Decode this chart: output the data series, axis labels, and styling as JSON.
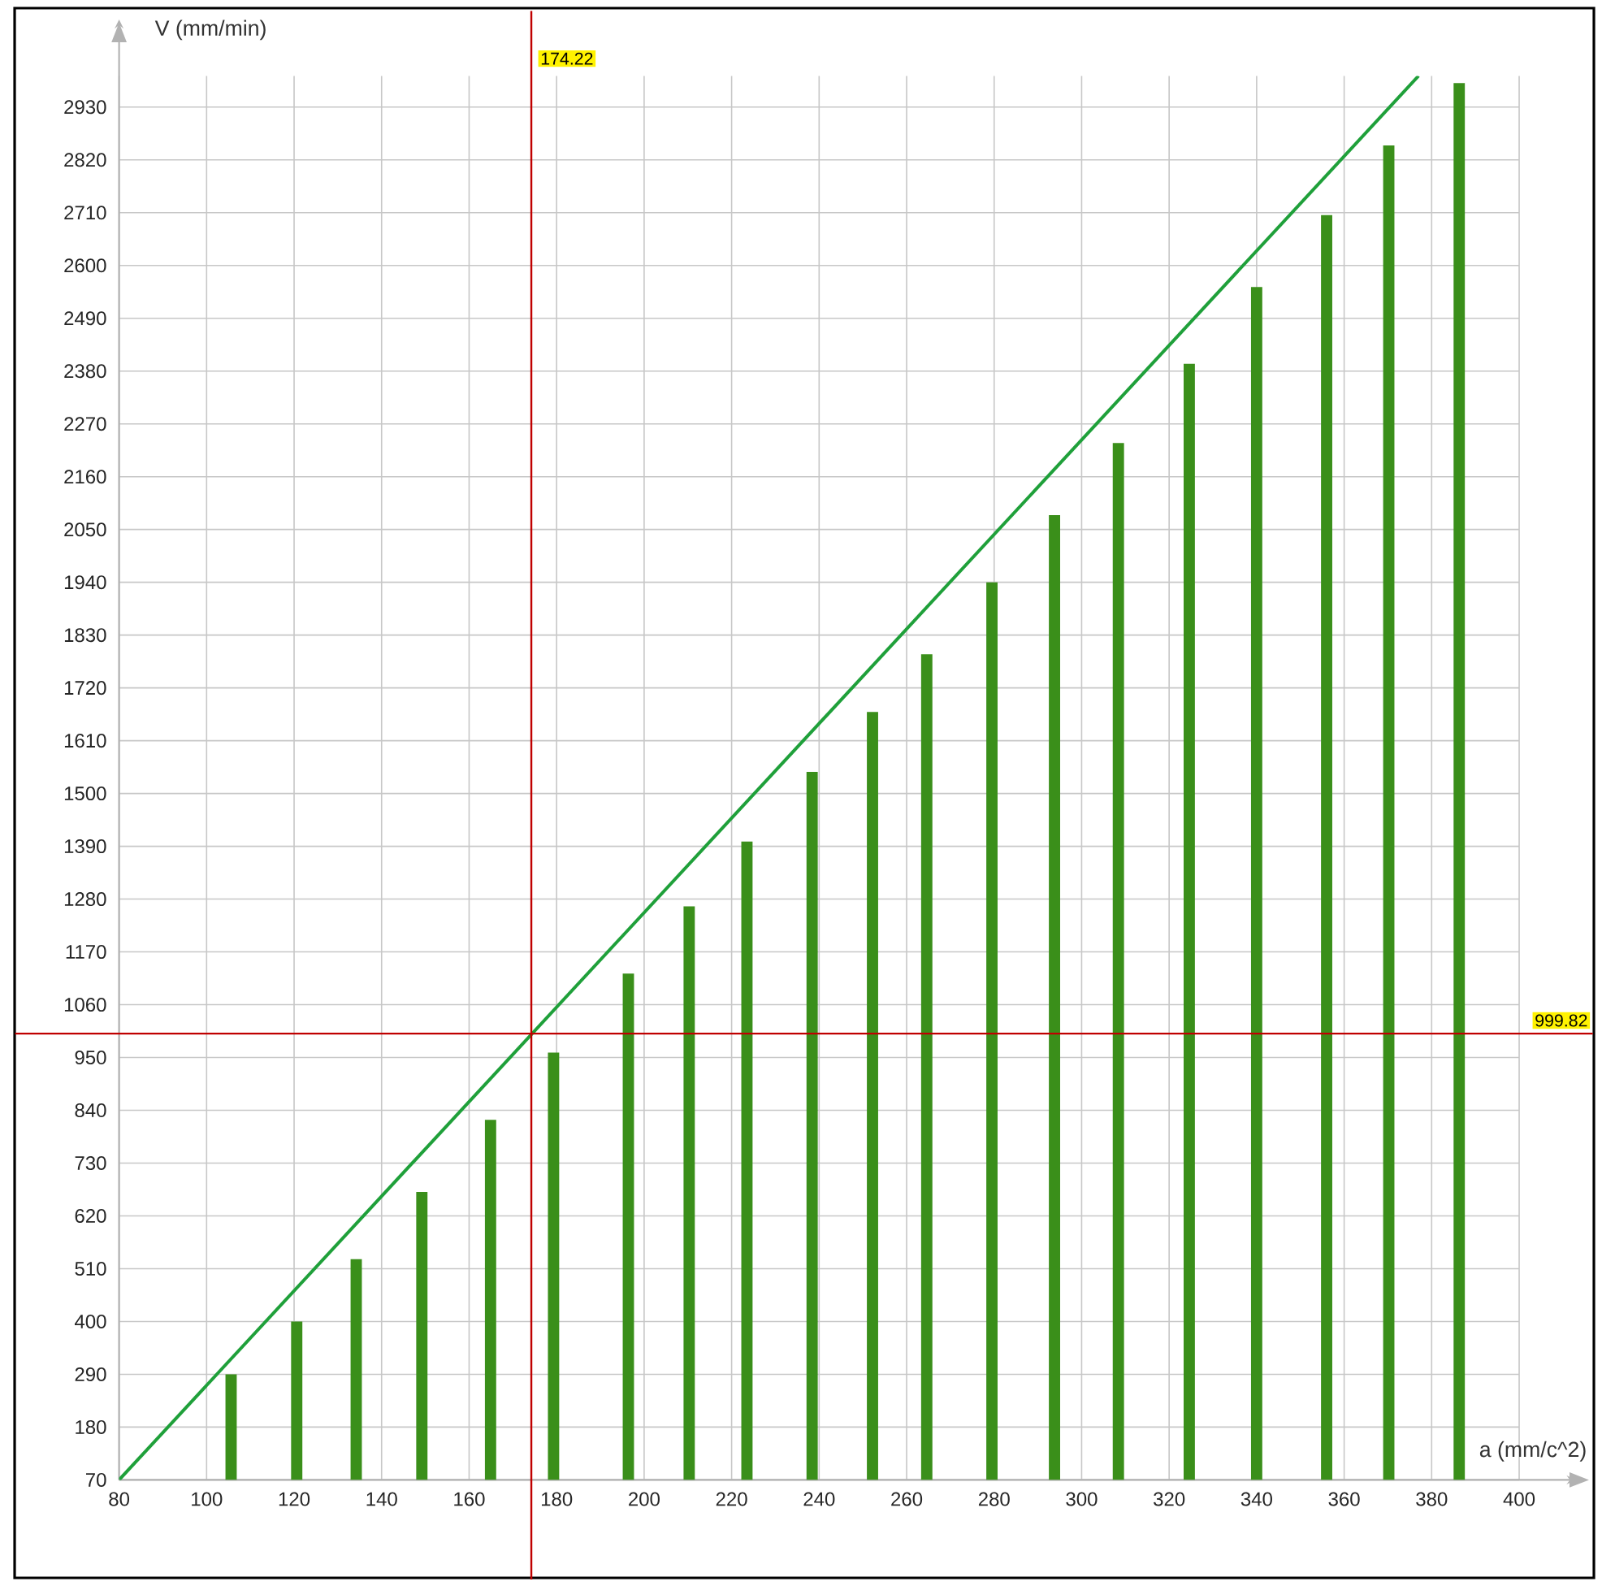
{
  "chart_data": {
    "type": "bar",
    "xlabel": "a (mm/c^2)",
    "ylabel": "V (mm/min)",
    "x": [
      105.6,
      120.6,
      134.2,
      149.2,
      164.9,
      179.3,
      196.4,
      210.3,
      223.5,
      238.4,
      252.2,
      264.6,
      279.5,
      293.8,
      308.4,
      324.6,
      340,
      356,
      370.2,
      386.3
    ],
    "series": [
      {
        "color": "#3a8f1a",
        "values": [
          290,
          400,
          530,
          670,
          820,
          960,
          1125,
          1265,
          1400,
          1545,
          1670,
          1790,
          1940,
          2080,
          2230,
          2395,
          2555,
          2705,
          2850,
          2980
        ]
      },
      {
        "type": "line",
        "color": "#1fa03a",
        "x": [
          80,
          377
        ],
        "values": [
          70,
          2995
        ]
      }
    ],
    "xlim": [
      80,
      400
    ],
    "ylim": [
      70,
      2995
    ],
    "xticks": [
      80,
      100,
      120,
      140,
      160,
      180,
      200,
      220,
      240,
      260,
      280,
      300,
      320,
      340,
      360,
      380,
      400
    ],
    "yticks": [
      70,
      180,
      290,
      400,
      510,
      620,
      730,
      840,
      950,
      1060,
      1170,
      1280,
      1390,
      1500,
      1610,
      1720,
      1830,
      1940,
      2050,
      2160,
      2270,
      2380,
      2490,
      2600,
      2710,
      2820,
      2930
    ],
    "grid": true,
    "ref_lines": [
      {
        "axis": "x",
        "value": 174.22,
        "label": "174.22",
        "color": "#c00000"
      },
      {
        "axis": "y",
        "value": 999.82,
        "label": "999.82",
        "color": "#c00000"
      }
    ]
  }
}
